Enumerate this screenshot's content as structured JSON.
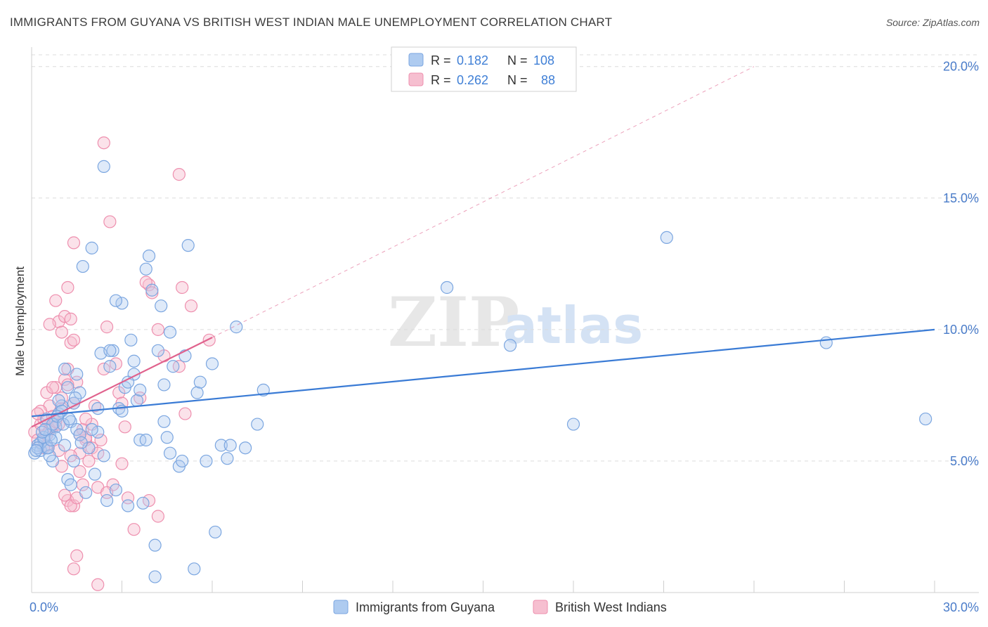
{
  "title": "IMMIGRANTS FROM GUYANA VS BRITISH WEST INDIAN MALE UNEMPLOYMENT CORRELATION CHART",
  "source": "Source: ZipAtlas.com",
  "watermark": {
    "zip": "ZIP",
    "atlas": "atlas"
  },
  "colors": {
    "blue": "#7ba6e0",
    "blue_fill": "#aecbf0",
    "blue_line": "#3a7bd5",
    "pink": "#ee8fae",
    "pink_fill": "#f6bfd0",
    "pink_line": "#e0628d",
    "grid": "#dcdcdc",
    "tick_text": "#4a7cc9"
  },
  "chart_data": {
    "type": "scatter",
    "title": "IMMIGRANTS FROM GUYANA VS BRITISH WEST INDIAN MALE UNEMPLOYMENT CORRELATION CHART",
    "xlabel": "",
    "ylabel": "Male Unemployment",
    "xlim": [
      0,
      30
    ],
    "ylim": [
      0,
      20
    ],
    "x_tick_labels": [
      "0.0%",
      "30.0%"
    ],
    "y_tick_labels": [
      "5.0%",
      "10.0%",
      "15.0%",
      "20.0%"
    ],
    "y_ticks": [
      5,
      10,
      15,
      20
    ],
    "legend_position": "top-center",
    "series": [
      {
        "name": "Immigrants from Guyana",
        "R": "0.182",
        "N": "108",
        "trend": {
          "x": [
            0,
            30
          ],
          "y": [
            6.7,
            10.0
          ]
        },
        "points": [
          [
            0.1,
            5.3
          ],
          [
            0.2,
            5.6
          ],
          [
            0.3,
            5.4
          ],
          [
            0.4,
            5.8
          ],
          [
            0.5,
            5.5
          ],
          [
            0.6,
            6.0
          ],
          [
            0.7,
            5.0
          ],
          [
            0.8,
            6.3
          ],
          [
            0.9,
            6.8
          ],
          [
            1.0,
            7.1
          ],
          [
            1.1,
            5.6
          ],
          [
            1.2,
            4.3
          ],
          [
            1.3,
            6.5
          ],
          [
            1.4,
            5.0
          ],
          [
            1.5,
            8.3
          ],
          [
            1.6,
            7.6
          ],
          [
            1.7,
            12.4
          ],
          [
            1.8,
            3.8
          ],
          [
            1.9,
            5.5
          ],
          [
            2.0,
            13.1
          ],
          [
            2.1,
            4.5
          ],
          [
            2.2,
            6.1
          ],
          [
            2.3,
            9.1
          ],
          [
            2.4,
            16.2
          ],
          [
            2.5,
            3.5
          ],
          [
            2.6,
            8.6
          ],
          [
            2.7,
            9.2
          ],
          [
            2.8,
            3.9
          ],
          [
            2.9,
            7.0
          ],
          [
            3.0,
            11.0
          ],
          [
            3.1,
            7.8
          ],
          [
            3.2,
            3.3
          ],
          [
            3.3,
            9.6
          ],
          [
            3.4,
            8.8
          ],
          [
            3.5,
            7.3
          ],
          [
            3.6,
            5.8
          ],
          [
            3.7,
            3.4
          ],
          [
            3.8,
            12.3
          ],
          [
            3.9,
            12.8
          ],
          [
            4.0,
            11.5
          ],
          [
            4.1,
            1.8
          ],
          [
            4.2,
            9.2
          ],
          [
            4.3,
            10.9
          ],
          [
            4.4,
            6.5
          ],
          [
            4.5,
            5.9
          ],
          [
            4.6,
            9.9
          ],
          [
            4.7,
            8.6
          ],
          [
            4.9,
            4.8
          ],
          [
            5.0,
            5.0
          ],
          [
            5.2,
            13.2
          ],
          [
            5.4,
            0.9
          ],
          [
            5.5,
            7.6
          ],
          [
            5.6,
            8.0
          ],
          [
            5.8,
            5.0
          ],
          [
            6.0,
            8.7
          ],
          [
            6.1,
            2.3
          ],
          [
            6.3,
            5.6
          ],
          [
            6.5,
            5.1
          ],
          [
            6.6,
            5.6
          ],
          [
            6.8,
            10.1
          ],
          [
            7.1,
            5.5
          ],
          [
            7.5,
            6.4
          ],
          [
            7.7,
            7.7
          ],
          [
            0.3,
            5.7
          ],
          [
            0.5,
            6.6
          ],
          [
            0.7,
            6.4
          ],
          [
            0.9,
            7.3
          ],
          [
            1.1,
            8.5
          ],
          [
            1.3,
            4.1
          ],
          [
            1.5,
            6.2
          ],
          [
            2.8,
            11.1
          ],
          [
            3.0,
            6.9
          ],
          [
            3.4,
            8.3
          ],
          [
            4.1,
            0.6
          ],
          [
            4.6,
            5.3
          ],
          [
            5.1,
            9.0
          ],
          [
            0.2,
            5.5
          ],
          [
            0.4,
            5.9
          ],
          [
            0.6,
            5.2
          ],
          [
            1.0,
            6.9
          ],
          [
            1.2,
            7.8
          ],
          [
            1.4,
            7.2
          ],
          [
            2.0,
            6.2
          ],
          [
            2.6,
            9.2
          ],
          [
            3.2,
            8.0
          ],
          [
            3.6,
            7.7
          ],
          [
            13.8,
            11.6
          ],
          [
            15.9,
            9.4
          ],
          [
            18.0,
            6.4
          ],
          [
            21.1,
            13.5
          ],
          [
            26.4,
            9.5
          ],
          [
            29.7,
            6.6
          ],
          [
            0.35,
            6.1
          ],
          [
            0.55,
            5.5
          ],
          [
            0.8,
            5.9
          ],
          [
            1.6,
            6.0
          ],
          [
            2.2,
            7.0
          ],
          [
            2.4,
            5.2
          ],
          [
            3.8,
            5.8
          ],
          [
            4.4,
            7.9
          ],
          [
            0.15,
            5.4
          ],
          [
            0.45,
            6.2
          ],
          [
            0.65,
            5.8
          ],
          [
            0.85,
            6.7
          ],
          [
            1.05,
            6.4
          ],
          [
            1.25,
            6.6
          ],
          [
            1.45,
            7.4
          ],
          [
            1.65,
            5.7
          ]
        ]
      },
      {
        "name": "British West Indians",
        "R": "0.262",
        "N": "88",
        "trend": {
          "x": [
            0,
            6
          ],
          "y": [
            6.3,
            9.7
          ]
        },
        "trend_extended": {
          "x": [
            6,
            24
          ],
          "y": [
            9.7,
            20.0
          ]
        },
        "points": [
          [
            0.1,
            6.1
          ],
          [
            0.2,
            5.8
          ],
          [
            0.3,
            6.4
          ],
          [
            0.4,
            6.6
          ],
          [
            0.5,
            5.6
          ],
          [
            0.6,
            7.1
          ],
          [
            0.7,
            6.3
          ],
          [
            0.8,
            7.8
          ],
          [
            0.9,
            6.4
          ],
          [
            1.0,
            7.0
          ],
          [
            1.1,
            8.1
          ],
          [
            1.2,
            8.5
          ],
          [
            1.3,
            9.5
          ],
          [
            1.4,
            13.3
          ],
          [
            1.5,
            8.0
          ],
          [
            1.6,
            5.3
          ],
          [
            1.7,
            6.2
          ],
          [
            1.8,
            5.8
          ],
          [
            1.9,
            5.0
          ],
          [
            2.0,
            5.5
          ],
          [
            2.1,
            7.1
          ],
          [
            2.2,
            4.0
          ],
          [
            2.3,
            5.8
          ],
          [
            2.4,
            8.5
          ],
          [
            2.5,
            10.1
          ],
          [
            2.6,
            14.1
          ],
          [
            2.7,
            4.1
          ],
          [
            2.8,
            8.7
          ],
          [
            2.9,
            7.6
          ],
          [
            3.0,
            7.2
          ],
          [
            3.1,
            6.3
          ],
          [
            3.2,
            3.6
          ],
          [
            3.4,
            2.4
          ],
          [
            3.6,
            7.4
          ],
          [
            3.9,
            11.7
          ],
          [
            4.0,
            11.4
          ],
          [
            4.4,
            9.0
          ],
          [
            4.9,
            8.6
          ],
          [
            5.0,
            11.6
          ],
          [
            5.1,
            6.8
          ],
          [
            5.3,
            10.9
          ],
          [
            2.4,
            17.1
          ],
          [
            4.9,
            15.9
          ],
          [
            1.2,
            3.5
          ],
          [
            1.4,
            3.3
          ],
          [
            1.5,
            1.4
          ],
          [
            1.4,
            0.9
          ],
          [
            2.2,
            0.3
          ],
          [
            0.5,
            7.6
          ],
          [
            0.7,
            7.8
          ],
          [
            0.9,
            10.3
          ],
          [
            1.1,
            10.5
          ],
          [
            1.3,
            10.4
          ],
          [
            0.6,
            10.2
          ],
          [
            1.2,
            11.6
          ],
          [
            0.8,
            11.1
          ],
          [
            1.0,
            9.9
          ],
          [
            1.4,
            9.6
          ],
          [
            1.0,
            4.8
          ],
          [
            1.3,
            5.2
          ],
          [
            1.6,
            4.6
          ],
          [
            1.8,
            5.9
          ],
          [
            2.0,
            6.4
          ],
          [
            2.2,
            5.3
          ],
          [
            3.8,
            11.8
          ],
          [
            4.2,
            10.0
          ],
          [
            5.9,
            9.6
          ],
          [
            0.3,
            6.9
          ],
          [
            0.5,
            6.0
          ],
          [
            0.7,
            6.7
          ],
          [
            0.9,
            5.4
          ],
          [
            1.1,
            3.7
          ],
          [
            1.3,
            3.3
          ],
          [
            1.5,
            3.6
          ],
          [
            1.7,
            4.1
          ],
          [
            2.5,
            3.8
          ],
          [
            3.0,
            4.9
          ],
          [
            3.9,
            3.5
          ],
          [
            4.2,
            2.9
          ],
          [
            0.4,
            5.5
          ],
          [
            0.2,
            6.8
          ],
          [
            0.6,
            6.2
          ],
          [
            0.8,
            6.5
          ],
          [
            1.0,
            7.4
          ],
          [
            1.2,
            7.9
          ],
          [
            1.4,
            7.2
          ],
          [
            1.6,
            6.0
          ],
          [
            1.8,
            6.6
          ]
        ]
      }
    ]
  }
}
